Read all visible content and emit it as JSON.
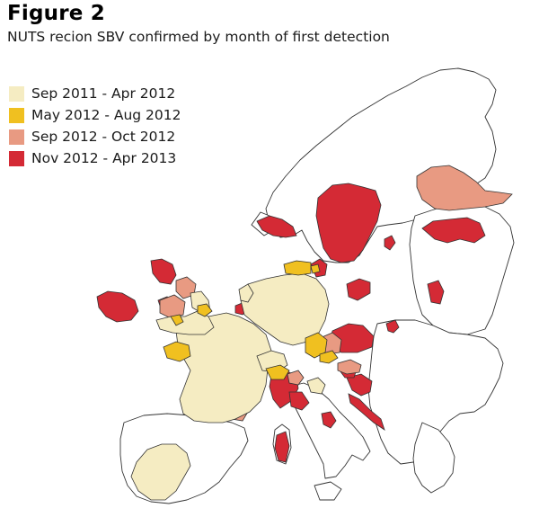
{
  "figure": {
    "title": "Figure 2",
    "subtitle": "NUTS recion SBV confirmed by month of first detection"
  },
  "legend": {
    "items": [
      {
        "label": "Sep 2011 - Apr 2012",
        "color": "#f5ecc2"
      },
      {
        "label": "May 2012 - Aug 2012",
        "color": "#f0c020"
      },
      {
        "label": "Sep 2012 - Oct 2012",
        "color": "#e89a82"
      },
      {
        "label": "Nov 2012 - Apr 2013",
        "color": "#d42a35"
      }
    ]
  },
  "map": {
    "outline_color": "#333333",
    "background": "#ffffff"
  }
}
